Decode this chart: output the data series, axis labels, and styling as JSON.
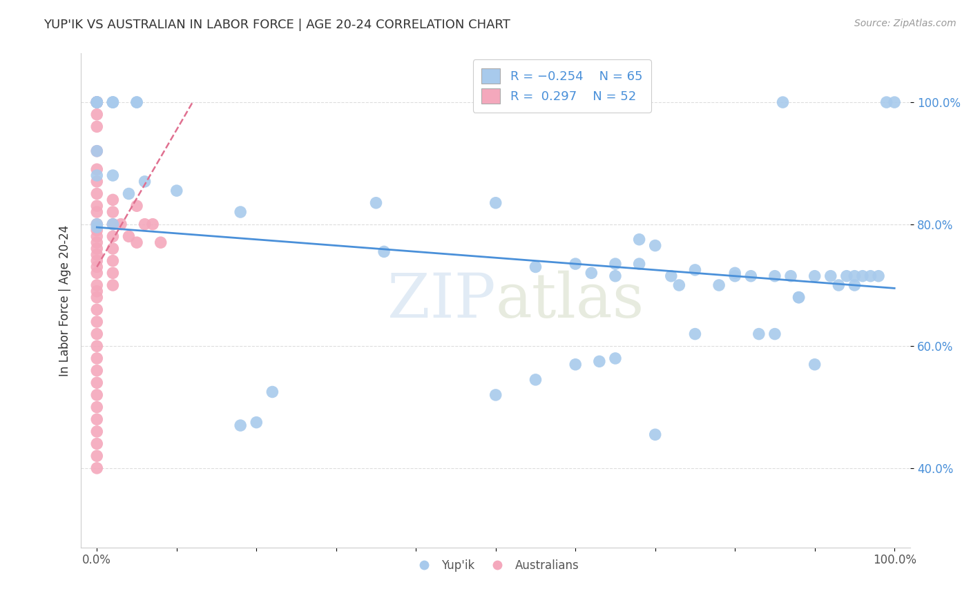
{
  "title": "YUP'IK VS AUSTRALIAN IN LABOR FORCE | AGE 20-24 CORRELATION CHART",
  "source_text": "Source: ZipAtlas.com",
  "ylabel": "In Labor Force | Age 20-24",
  "xlim": [
    -0.02,
    1.02
  ],
  "ylim": [
    0.27,
    1.08
  ],
  "ytick_values": [
    0.4,
    0.6,
    0.8,
    1.0
  ],
  "ytick_labels": [
    "40.0%",
    "60.0%",
    "80.0%",
    "100.0%"
  ],
  "xtick_values": [
    0.0,
    0.1,
    0.2,
    0.3,
    0.4,
    0.5,
    0.6,
    0.7,
    0.8,
    0.9,
    1.0
  ],
  "xtick_labels": [
    "0.0%",
    "",
    "",
    "",
    "",
    "",
    "",
    "",
    "",
    "",
    "100.0%"
  ],
  "watermark_zip": "ZIP",
  "watermark_atlas": "atlas",
  "blue_color": "#A8CAEC",
  "pink_color": "#F4A8BC",
  "blue_line_color": "#4A90D9",
  "pink_line_color": "#E07090",
  "title_color": "#333333",
  "source_color": "#999999",
  "stat_color": "#4A90D9",
  "grid_color": "#DDDDDD",
  "blue_scatter": [
    [
      0.0,
      1.0
    ],
    [
      0.0,
      1.0
    ],
    [
      0.0,
      1.0
    ],
    [
      0.0,
      1.0
    ],
    [
      0.02,
      1.0
    ],
    [
      0.02,
      1.0
    ],
    [
      0.02,
      1.0
    ],
    [
      0.05,
      1.0
    ],
    [
      0.05,
      1.0
    ],
    [
      0.0,
      0.92
    ],
    [
      0.0,
      0.88
    ],
    [
      0.02,
      0.88
    ],
    [
      0.04,
      0.85
    ],
    [
      0.06,
      0.87
    ],
    [
      0.1,
      0.855
    ],
    [
      0.18,
      0.82
    ],
    [
      0.0,
      0.795
    ],
    [
      0.0,
      0.8
    ],
    [
      0.02,
      0.8
    ],
    [
      0.35,
      0.835
    ],
    [
      0.36,
      0.755
    ],
    [
      0.5,
      0.835
    ],
    [
      0.55,
      0.73
    ],
    [
      0.6,
      0.735
    ],
    [
      0.62,
      0.72
    ],
    [
      0.65,
      0.715
    ],
    [
      0.65,
      0.735
    ],
    [
      0.68,
      0.775
    ],
    [
      0.68,
      0.735
    ],
    [
      0.7,
      0.765
    ],
    [
      0.72,
      0.715
    ],
    [
      0.73,
      0.7
    ],
    [
      0.75,
      0.725
    ],
    [
      0.78,
      0.7
    ],
    [
      0.8,
      0.72
    ],
    [
      0.8,
      0.715
    ],
    [
      0.82,
      0.715
    ],
    [
      0.83,
      0.62
    ],
    [
      0.85,
      0.715
    ],
    [
      0.85,
      0.62
    ],
    [
      0.86,
      1.0
    ],
    [
      0.87,
      0.715
    ],
    [
      0.88,
      0.68
    ],
    [
      0.88,
      0.68
    ],
    [
      0.9,
      0.57
    ],
    [
      0.9,
      0.715
    ],
    [
      0.92,
      0.715
    ],
    [
      0.93,
      0.7
    ],
    [
      0.94,
      0.715
    ],
    [
      0.95,
      0.715
    ],
    [
      0.95,
      0.7
    ],
    [
      0.96,
      0.715
    ],
    [
      0.97,
      0.715
    ],
    [
      0.98,
      0.715
    ],
    [
      0.99,
      1.0
    ],
    [
      1.0,
      1.0
    ],
    [
      0.6,
      0.57
    ],
    [
      0.63,
      0.575
    ],
    [
      0.65,
      0.58
    ],
    [
      0.75,
      0.62
    ],
    [
      0.18,
      0.47
    ],
    [
      0.2,
      0.475
    ],
    [
      0.22,
      0.525
    ],
    [
      0.7,
      0.455
    ],
    [
      0.5,
      0.52
    ],
    [
      0.55,
      0.545
    ]
  ],
  "pink_scatter": [
    [
      0.0,
      1.0
    ],
    [
      0.0,
      1.0
    ],
    [
      0.0,
      1.0
    ],
    [
      0.0,
      1.0
    ],
    [
      0.0,
      1.0
    ],
    [
      0.0,
      0.98
    ],
    [
      0.0,
      0.96
    ],
    [
      0.0,
      0.92
    ],
    [
      0.0,
      0.89
    ],
    [
      0.0,
      0.87
    ],
    [
      0.0,
      0.85
    ],
    [
      0.0,
      0.83
    ],
    [
      0.0,
      0.82
    ],
    [
      0.0,
      0.8
    ],
    [
      0.0,
      0.79
    ],
    [
      0.0,
      0.78
    ],
    [
      0.0,
      0.77
    ],
    [
      0.0,
      0.76
    ],
    [
      0.0,
      0.75
    ],
    [
      0.0,
      0.74
    ],
    [
      0.0,
      0.73
    ],
    [
      0.0,
      0.72
    ],
    [
      0.0,
      0.7
    ],
    [
      0.0,
      0.69
    ],
    [
      0.0,
      0.68
    ],
    [
      0.0,
      0.66
    ],
    [
      0.0,
      0.64
    ],
    [
      0.0,
      0.62
    ],
    [
      0.0,
      0.6
    ],
    [
      0.0,
      0.58
    ],
    [
      0.0,
      0.56
    ],
    [
      0.0,
      0.54
    ],
    [
      0.0,
      0.52
    ],
    [
      0.0,
      0.5
    ],
    [
      0.0,
      0.48
    ],
    [
      0.0,
      0.46
    ],
    [
      0.0,
      0.44
    ],
    [
      0.0,
      0.42
    ],
    [
      0.02,
      0.84
    ],
    [
      0.02,
      0.82
    ],
    [
      0.02,
      0.8
    ],
    [
      0.02,
      0.78
    ],
    [
      0.02,
      0.76
    ],
    [
      0.02,
      0.74
    ],
    [
      0.02,
      0.72
    ],
    [
      0.02,
      0.7
    ],
    [
      0.03,
      0.8
    ],
    [
      0.04,
      0.78
    ],
    [
      0.05,
      0.83
    ],
    [
      0.05,
      0.77
    ],
    [
      0.06,
      0.8
    ],
    [
      0.07,
      0.8
    ],
    [
      0.0,
      0.4
    ],
    [
      0.08,
      0.77
    ]
  ],
  "blue_trend_x": [
    0.0,
    1.0
  ],
  "blue_trend_y": [
    0.795,
    0.695
  ],
  "pink_trend_x": [
    0.0,
    0.12
  ],
  "pink_trend_y": [
    0.73,
    1.0
  ]
}
